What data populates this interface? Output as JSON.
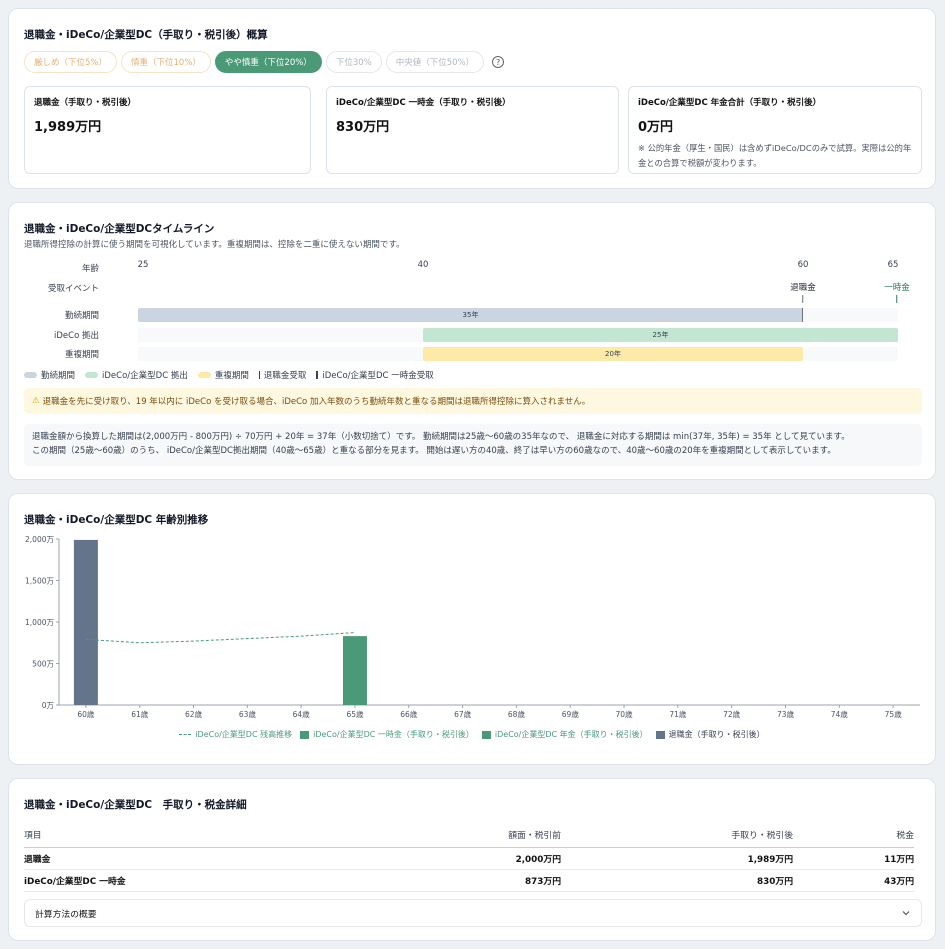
{
  "summary": {
    "title": "退職金・iDeCo/企業型DC（手取り・税引後）概算",
    "chips": [
      "厳しめ（下位5%）",
      "慎重（下位10%）",
      "やや慎重（下位20%）",
      "下位30%",
      "中央値（下位50%）"
    ],
    "help": "?",
    "metrics": [
      {
        "label": "退職金（手取り・税引後）",
        "value": "1,989万円"
      },
      {
        "label": "iDeCo/企業型DC 一時金（手取り・税引後）",
        "value": "830万円"
      },
      {
        "label": "iDeCo/企業型DC 年金合計（手取り・税引後）",
        "value": "0万円",
        "note": "※ 公的年金（厚生・国民）は含めずiDeCo/DCのみで試算。実際は公的年金との合算で税額が変わります。"
      }
    ]
  },
  "timeline": {
    "title": "退職金・iDeCo/企業型DCタイムライン",
    "subtitle": "退職所得控除の計算に使う期間を可視化しています。重複期間は、控除を二重に使えない期間です。",
    "rows": [
      "年齢",
      "受取イベント",
      "勤続期間",
      "iDeCo 拠出",
      "重複期間"
    ],
    "ticks": [
      "25",
      "40",
      "60",
      "65"
    ],
    "events": [
      "退職金",
      "一時金"
    ],
    "bars": {
      "work": "35年",
      "ideco": "25年",
      "overlap": "20年"
    },
    "legend": [
      "勤続期間",
      "iDeCo/企業型DC 拠出",
      "重複期間",
      "退職金受取",
      "iDeCo/企業型DC 一時金受取"
    ],
    "alert": "退職金を先に受け取り、19 年以内に iDeCo を受け取る場合、iDeCo 加入年数のうち勤続年数と重なる期間は退職所得控除に算入されません。",
    "calc1": "退職金額から換算した期間は(2,000万円 - 800万円) ÷ 70万円 + 20年 = 37年（小数切捨て）です。 勤続期間は25歳〜60歳の35年なので、 退職金に対応する期間は min(37年, 35年) = 35年 として見ています。",
    "calc2": "この期間（25歳〜60歳）のうち、 iDeCo/企業型DC拠出期間（40歳〜65歳）と重なる部分を見ます。 開始は遅い方の40歳、終了は早い方の60歳なので、40歳〜60歳の20年を重複期間として表示しています。"
  },
  "chart_data": {
    "type": "bar",
    "title": "退職金・iDeCo/企業型DC 年齢別推移",
    "categories": [
      "60歳",
      "61歳",
      "62歳",
      "63歳",
      "64歳",
      "65歳",
      "66歳",
      "67歳",
      "68歳",
      "69歳",
      "70歳",
      "71歳",
      "72歳",
      "73歳",
      "74歳",
      "75歳"
    ],
    "yticks": [
      "0万",
      "500万",
      "1,000万",
      "1,500万",
      "2,000万"
    ],
    "ylim": [
      0,
      2000
    ],
    "series": [
      {
        "name": "iDeCo/企業型DC 残高推移",
        "kind": "line",
        "color": "#4a9a78",
        "values": [
          790,
          750,
          770,
          800,
          830,
          873,
          null,
          null,
          null,
          null,
          null,
          null,
          null,
          null,
          null,
          null
        ]
      },
      {
        "name": "iDeCo/企業型DC 一時金（手取り・税引後）",
        "kind": "bar",
        "color": "#4a9a78",
        "values": [
          0,
          0,
          0,
          0,
          0,
          830,
          0,
          0,
          0,
          0,
          0,
          0,
          0,
          0,
          0,
          0
        ]
      },
      {
        "name": "iDeCo/企業型DC 年金（手取り・税引後）",
        "kind": "bar",
        "color": "#4a9a78",
        "values": [
          0,
          0,
          0,
          0,
          0,
          0,
          0,
          0,
          0,
          0,
          0,
          0,
          0,
          0,
          0,
          0
        ]
      },
      {
        "name": "退職金（手取り・税引後）",
        "kind": "bar",
        "color": "#64748b",
        "values": [
          1989,
          0,
          0,
          0,
          0,
          0,
          0,
          0,
          0,
          0,
          0,
          0,
          0,
          0,
          0,
          0
        ]
      }
    ]
  },
  "details": {
    "title": "退職金・iDeCo/企業型DC　手取り・税金詳細",
    "headers": [
      "項目",
      "額面・税引前",
      "手取り・税引後",
      "税金"
    ],
    "rows": [
      [
        "退職金",
        "2,000万円",
        "1,989万円",
        "11万円"
      ],
      [
        "iDeCo/企業型DC 一時金",
        "873万円",
        "830万円",
        "43万円"
      ]
    ],
    "accordion": "計算方法の概要"
  }
}
